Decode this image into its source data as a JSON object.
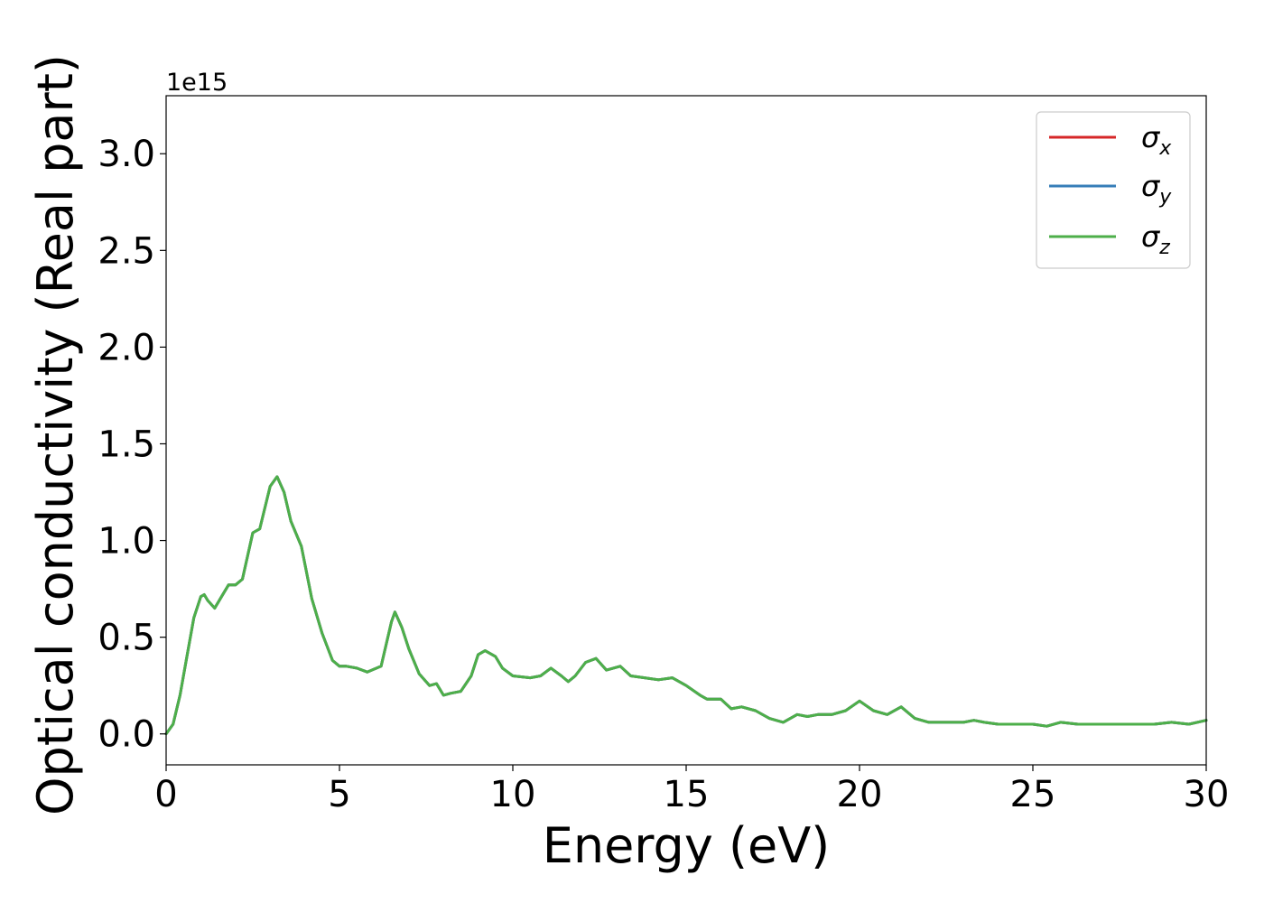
{
  "chart_data": {
    "type": "line",
    "title": "",
    "xlabel": "Energy (eV)",
    "ylabel": "Optical conductivity (Real part)",
    "y_offset_text": "1e15",
    "y_scale": 1000000000000000.0,
    "xlim": [
      0,
      30
    ],
    "ylim": [
      -0.16,
      3.3
    ],
    "x_ticks": [
      0,
      5,
      10,
      15,
      20,
      25,
      30
    ],
    "x_tick_labels": [
      "0",
      "5",
      "10",
      "15",
      "20",
      "25",
      "30"
    ],
    "y_ticks": [
      0.0,
      0.5,
      1.0,
      1.5,
      2.0,
      2.5,
      3.0
    ],
    "y_tick_labels": [
      "0.0",
      "0.5",
      "1.0",
      "1.5",
      "2.0",
      "2.5",
      "3.0"
    ],
    "grid": false,
    "legend_position": "top-right",
    "x": [
      0,
      0.2,
      0.4,
      0.6,
      0.8,
      1.0,
      1.1,
      1.2,
      1.4,
      1.6,
      1.8,
      2.0,
      2.2,
      2.5,
      2.7,
      3.0,
      3.2,
      3.4,
      3.6,
      3.9,
      4.2,
      4.5,
      4.8,
      5.0,
      5.2,
      5.5,
      5.8,
      6.2,
      6.5,
      6.6,
      6.8,
      7.0,
      7.3,
      7.6,
      7.8,
      8.0,
      8.2,
      8.5,
      8.8,
      9.0,
      9.2,
      9.5,
      9.7,
      10.0,
      10.5,
      10.8,
      11.1,
      11.4,
      11.6,
      11.8,
      12.1,
      12.4,
      12.7,
      13.1,
      13.4,
      13.8,
      14.2,
      14.6,
      15.0,
      15.4,
      15.6,
      16.0,
      16.3,
      16.6,
      17.0,
      17.4,
      17.8,
      18.2,
      18.5,
      18.8,
      19.2,
      19.6,
      20.0,
      20.4,
      20.8,
      21.2,
      21.6,
      22.0,
      22.5,
      23.0,
      23.3,
      23.6,
      24.0,
      24.5,
      25.0,
      25.4,
      25.8,
      26.3,
      26.8,
      27.2,
      27.6,
      28.0,
      28.5,
      29.0,
      29.5,
      30.0
    ],
    "series": [
      {
        "name": "σx",
        "color": "#d62728",
        "values": [
          0.0,
          0.05,
          0.2,
          0.4,
          0.6,
          0.71,
          0.72,
          0.69,
          0.65,
          0.71,
          0.77,
          0.77,
          0.8,
          1.04,
          1.06,
          1.28,
          1.33,
          1.25,
          1.1,
          0.97,
          0.7,
          0.52,
          0.38,
          0.35,
          0.35,
          0.34,
          0.32,
          0.35,
          0.58,
          0.63,
          0.55,
          0.44,
          0.31,
          0.25,
          0.26,
          0.2,
          0.21,
          0.22,
          0.3,
          0.41,
          0.43,
          0.4,
          0.34,
          0.3,
          0.29,
          0.3,
          0.34,
          0.3,
          0.27,
          0.3,
          0.37,
          0.39,
          0.33,
          0.35,
          0.3,
          0.29,
          0.28,
          0.29,
          0.25,
          0.2,
          0.18,
          0.18,
          0.13,
          0.14,
          0.12,
          0.08,
          0.06,
          0.1,
          0.09,
          0.1,
          0.1,
          0.12,
          0.17,
          0.12,
          0.1,
          0.14,
          0.08,
          0.06,
          0.06,
          0.06,
          0.07,
          0.06,
          0.05,
          0.05,
          0.05,
          0.04,
          0.06,
          0.05,
          0.05,
          0.05,
          0.05,
          0.05,
          0.05,
          0.06,
          0.05,
          0.07
        ]
      },
      {
        "name": "σy",
        "color": "#377eb8",
        "values": [
          0.0,
          0.05,
          0.2,
          0.4,
          0.6,
          0.71,
          0.72,
          0.69,
          0.65,
          0.71,
          0.77,
          0.77,
          0.8,
          1.04,
          1.06,
          1.28,
          1.33,
          1.25,
          1.1,
          0.97,
          0.7,
          0.52,
          0.38,
          0.35,
          0.35,
          0.34,
          0.32,
          0.35,
          0.58,
          0.63,
          0.55,
          0.44,
          0.31,
          0.25,
          0.26,
          0.2,
          0.21,
          0.22,
          0.3,
          0.41,
          0.43,
          0.4,
          0.34,
          0.3,
          0.29,
          0.3,
          0.34,
          0.3,
          0.27,
          0.3,
          0.37,
          0.39,
          0.33,
          0.35,
          0.3,
          0.29,
          0.28,
          0.29,
          0.25,
          0.2,
          0.18,
          0.18,
          0.13,
          0.14,
          0.12,
          0.08,
          0.06,
          0.1,
          0.09,
          0.1,
          0.1,
          0.12,
          0.17,
          0.12,
          0.1,
          0.14,
          0.08,
          0.06,
          0.06,
          0.06,
          0.07,
          0.06,
          0.05,
          0.05,
          0.05,
          0.04,
          0.06,
          0.05,
          0.05,
          0.05,
          0.05,
          0.05,
          0.05,
          0.06,
          0.05,
          0.07
        ]
      },
      {
        "name": "σz",
        "color": "#4daf4a",
        "values": [
          0.0,
          0.05,
          0.2,
          0.4,
          0.6,
          0.71,
          0.72,
          0.69,
          0.65,
          0.71,
          0.77,
          0.77,
          0.8,
          1.04,
          1.06,
          1.28,
          1.33,
          1.25,
          1.1,
          0.97,
          0.7,
          0.52,
          0.38,
          0.35,
          0.35,
          0.34,
          0.32,
          0.35,
          0.58,
          0.63,
          0.55,
          0.44,
          0.31,
          0.25,
          0.26,
          0.2,
          0.21,
          0.22,
          0.3,
          0.41,
          0.43,
          0.4,
          0.34,
          0.3,
          0.29,
          0.3,
          0.34,
          0.3,
          0.27,
          0.3,
          0.37,
          0.39,
          0.33,
          0.35,
          0.3,
          0.29,
          0.28,
          0.29,
          0.25,
          0.2,
          0.18,
          0.18,
          0.13,
          0.14,
          0.12,
          0.08,
          0.06,
          0.1,
          0.09,
          0.1,
          0.1,
          0.12,
          0.17,
          0.12,
          0.1,
          0.14,
          0.08,
          0.06,
          0.06,
          0.06,
          0.07,
          0.06,
          0.05,
          0.05,
          0.05,
          0.04,
          0.06,
          0.05,
          0.05,
          0.05,
          0.05,
          0.05,
          0.05,
          0.06,
          0.05,
          0.07
        ]
      }
    ],
    "legend": [
      {
        "symbol": "σ",
        "subscript": "x",
        "color": "#d62728"
      },
      {
        "symbol": "σ",
        "subscript": "y",
        "color": "#377eb8"
      },
      {
        "symbol": "σ",
        "subscript": "z",
        "color": "#4daf4a"
      }
    ]
  }
}
